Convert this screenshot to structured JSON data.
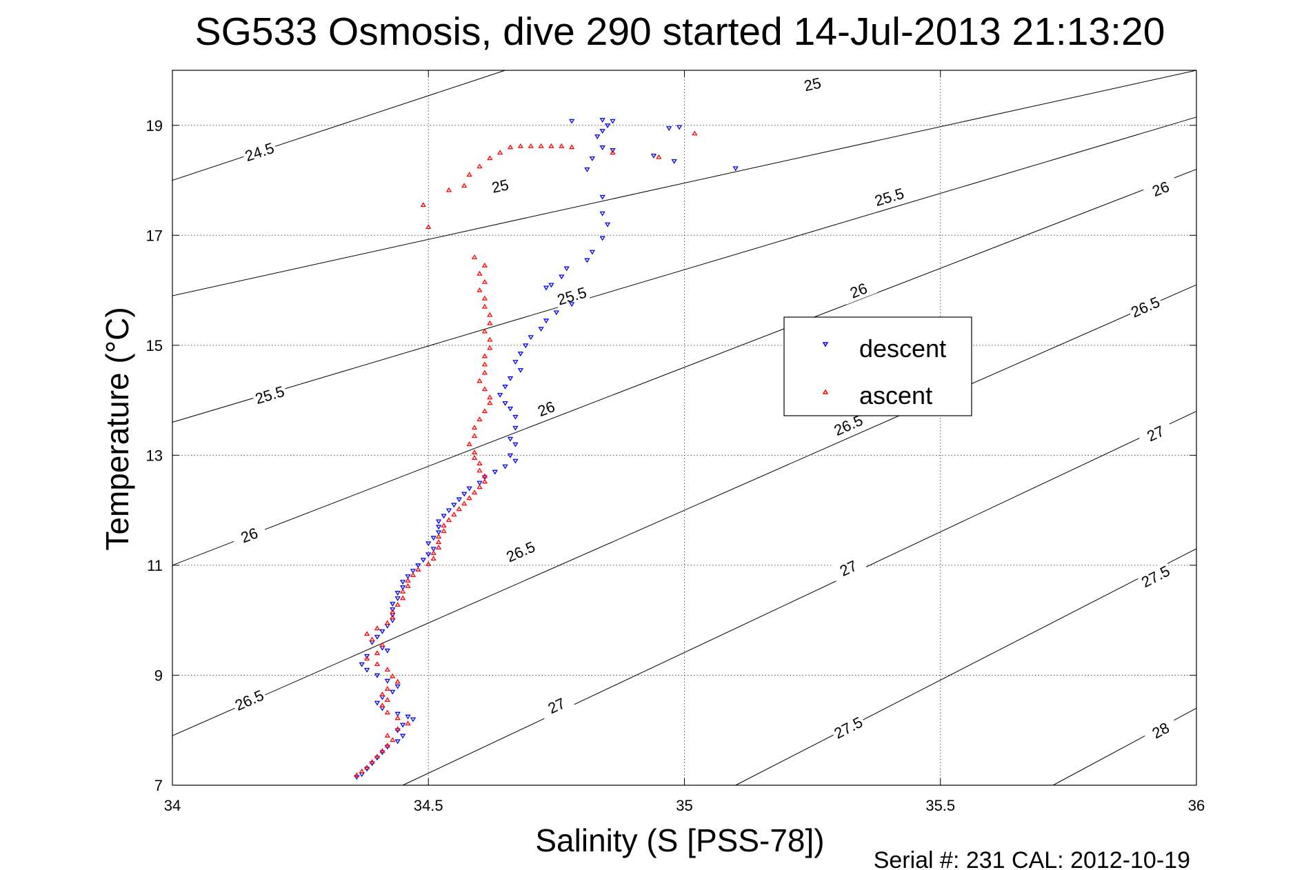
{
  "chart_data": {
    "type": "scatter",
    "title": "SG533 Osmosis, dive 290 started 14-Jul-2013 21:13:20",
    "xlabel": "Salinity (S [PSS-78])",
    "ylabel": "Temperature (°C)",
    "xlim": [
      34,
      36
    ],
    "ylim": [
      7,
      20
    ],
    "x_ticks": [
      34,
      34.5,
      35,
      35.5,
      36
    ],
    "x_tick_labels": [
      "34",
      "34.5",
      "35",
      "35.5",
      "36"
    ],
    "y_ticks": [
      7,
      9,
      11,
      13,
      15,
      17,
      19
    ],
    "y_tick_labels": [
      "7",
      "9",
      "11",
      "13",
      "15",
      "17",
      "19"
    ],
    "grid": true,
    "legend": {
      "position": "center-right"
    },
    "footer": "Serial #: 231  CAL: 2012-10-19",
    "density_contours": [
      {
        "level": "24.5",
        "line": [
          [
            34,
            18.0
          ],
          [
            34.65,
            20.0
          ]
        ],
        "labels": [
          {
            "s": 34.17,
            "t": 18.52
          }
        ]
      },
      {
        "level": "25",
        "line": [
          [
            34,
            15.9
          ],
          [
            36,
            20.0
          ]
        ],
        "labels": [
          {
            "s": 34.64,
            "t": 17.9
          },
          {
            "s": 35.25,
            "t": 19.75
          }
        ]
      },
      {
        "level": "25.5",
        "line": [
          [
            34,
            13.6
          ],
          [
            36,
            19.15
          ]
        ],
        "labels": [
          {
            "s": 34.19,
            "t": 14.1
          },
          {
            "s": 34.78,
            "t": 15.9
          },
          {
            "s": 35.4,
            "t": 17.7
          }
        ]
      },
      {
        "level": "26",
        "line": [
          [
            34,
            11.0
          ],
          [
            36,
            18.2
          ]
        ],
        "labels": [
          {
            "s": 34.15,
            "t": 11.55
          },
          {
            "s": 34.73,
            "t": 13.85
          },
          {
            "s": 35.34,
            "t": 16.0
          },
          {
            "s": 35.93,
            "t": 17.85
          }
        ]
      },
      {
        "level": "26.5",
        "line": [
          [
            34,
            7.9
          ],
          [
            36,
            16.1
          ]
        ],
        "labels": [
          {
            "s": 34.15,
            "t": 8.55
          },
          {
            "s": 34.68,
            "t": 11.25
          },
          {
            "s": 35.32,
            "t": 13.55
          },
          {
            "s": 35.9,
            "t": 15.7
          }
        ]
      },
      {
        "level": "27",
        "line": [
          [
            34.45,
            7.0
          ],
          [
            36,
            13.8
          ]
        ],
        "labels": [
          {
            "s": 34.75,
            "t": 8.45
          },
          {
            "s": 35.32,
            "t": 10.95
          },
          {
            "s": 35.92,
            "t": 13.4
          }
        ]
      },
      {
        "level": "27.5",
        "line": [
          [
            35.1,
            7.0
          ],
          [
            36,
            11.3
          ]
        ],
        "labels": [
          {
            "s": 35.32,
            "t": 8.05
          },
          {
            "s": 35.92,
            "t": 10.8
          }
        ]
      },
      {
        "level": "28",
        "line": [
          [
            35.72,
            7.0
          ],
          [
            36,
            8.4
          ]
        ],
        "labels": [
          {
            "s": 35.93,
            "t": 8.0
          }
        ]
      }
    ],
    "series": [
      {
        "name": "descent",
        "marker": "triangle-down",
        "color": "#0000ff",
        "points": [
          [
            34.78,
            19.08
          ],
          [
            34.84,
            19.1
          ],
          [
            34.86,
            19.08
          ],
          [
            34.85,
            19.0
          ],
          [
            34.84,
            18.9
          ],
          [
            34.97,
            18.95
          ],
          [
            34.99,
            18.97
          ],
          [
            34.83,
            18.8
          ],
          [
            34.84,
            18.6
          ],
          [
            34.86,
            18.55
          ],
          [
            34.94,
            18.45
          ],
          [
            34.82,
            18.4
          ],
          [
            34.81,
            18.2
          ],
          [
            34.98,
            18.35
          ],
          [
            35.1,
            18.22
          ],
          [
            34.84,
            17.7
          ],
          [
            34.84,
            17.4
          ],
          [
            34.85,
            17.2
          ],
          [
            34.84,
            16.95
          ],
          [
            34.82,
            16.7
          ],
          [
            34.81,
            16.55
          ],
          [
            34.77,
            16.4
          ],
          [
            34.76,
            16.25
          ],
          [
            34.74,
            16.1
          ],
          [
            34.73,
            16.05
          ],
          [
            34.78,
            15.75
          ],
          [
            34.75,
            15.6
          ],
          [
            34.73,
            15.45
          ],
          [
            34.72,
            15.3
          ],
          [
            34.7,
            15.15
          ],
          [
            34.69,
            15.0
          ],
          [
            34.68,
            14.85
          ],
          [
            34.67,
            14.7
          ],
          [
            34.68,
            14.55
          ],
          [
            34.66,
            14.4
          ],
          [
            34.65,
            14.25
          ],
          [
            34.64,
            14.1
          ],
          [
            34.65,
            13.95
          ],
          [
            34.66,
            13.85
          ],
          [
            34.67,
            13.7
          ],
          [
            34.67,
            13.5
          ],
          [
            34.66,
            13.3
          ],
          [
            34.67,
            13.2
          ],
          [
            34.66,
            13.0
          ],
          [
            34.67,
            12.9
          ],
          [
            34.65,
            12.8
          ],
          [
            34.63,
            12.7
          ],
          [
            34.61,
            12.6
          ],
          [
            34.6,
            12.5
          ],
          [
            34.58,
            12.4
          ],
          [
            34.57,
            12.3
          ],
          [
            34.56,
            12.2
          ],
          [
            34.55,
            12.1
          ],
          [
            34.54,
            12.0
          ],
          [
            34.53,
            11.9
          ],
          [
            34.52,
            11.8
          ],
          [
            34.52,
            11.7
          ],
          [
            34.52,
            11.6
          ],
          [
            34.51,
            11.5
          ],
          [
            34.5,
            11.4
          ],
          [
            34.51,
            11.3
          ],
          [
            34.5,
            11.2
          ],
          [
            34.49,
            11.1
          ],
          [
            34.48,
            11.0
          ],
          [
            34.47,
            10.9
          ],
          [
            34.46,
            10.8
          ],
          [
            34.45,
            10.7
          ],
          [
            34.45,
            10.6
          ],
          [
            34.44,
            10.5
          ],
          [
            34.44,
            10.4
          ],
          [
            34.43,
            10.3
          ],
          [
            34.43,
            10.2
          ],
          [
            34.43,
            10.1
          ],
          [
            34.43,
            10.0
          ],
          [
            34.42,
            9.9
          ],
          [
            34.41,
            9.8
          ],
          [
            34.4,
            9.7
          ],
          [
            34.39,
            9.6
          ],
          [
            34.41,
            9.5
          ],
          [
            34.42,
            9.45
          ],
          [
            34.38,
            9.35
          ],
          [
            34.37,
            9.2
          ],
          [
            34.38,
            9.1
          ],
          [
            34.4,
            9.0
          ],
          [
            34.42,
            8.9
          ],
          [
            34.44,
            8.8
          ],
          [
            34.43,
            8.7
          ],
          [
            34.41,
            8.6
          ],
          [
            34.4,
            8.5
          ],
          [
            34.41,
            8.4
          ],
          [
            34.44,
            8.3
          ],
          [
            34.46,
            8.25
          ],
          [
            34.47,
            8.2
          ],
          [
            34.45,
            8.1
          ],
          [
            34.44,
            8.0
          ],
          [
            34.45,
            7.9
          ],
          [
            34.44,
            7.8
          ],
          [
            34.42,
            7.7
          ],
          [
            34.41,
            7.6
          ],
          [
            34.4,
            7.5
          ],
          [
            34.39,
            7.4
          ],
          [
            34.38,
            7.3
          ],
          [
            34.37,
            7.2
          ],
          [
            34.36,
            7.15
          ]
        ]
      },
      {
        "name": "ascent",
        "marker": "triangle-up",
        "color": "#ff0000",
        "points": [
          [
            34.36,
            7.18
          ],
          [
            34.37,
            7.25
          ],
          [
            34.38,
            7.32
          ],
          [
            34.39,
            7.42
          ],
          [
            34.4,
            7.52
          ],
          [
            34.41,
            7.62
          ],
          [
            34.42,
            7.72
          ],
          [
            34.43,
            7.82
          ],
          [
            34.42,
            7.9
          ],
          [
            34.44,
            8.02
          ],
          [
            34.46,
            8.12
          ],
          [
            34.44,
            8.22
          ],
          [
            34.42,
            8.32
          ],
          [
            34.41,
            8.45
          ],
          [
            34.42,
            8.55
          ],
          [
            34.41,
            8.65
          ],
          [
            34.42,
            8.75
          ],
          [
            34.44,
            8.88
          ],
          [
            34.43,
            8.98
          ],
          [
            34.42,
            9.1
          ],
          [
            34.4,
            9.2
          ],
          [
            34.38,
            9.3
          ],
          [
            34.4,
            9.4
          ],
          [
            34.41,
            9.55
          ],
          [
            34.39,
            9.65
          ],
          [
            34.38,
            9.75
          ],
          [
            34.4,
            9.85
          ],
          [
            34.42,
            9.95
          ],
          [
            34.43,
            10.05
          ],
          [
            34.43,
            10.15
          ],
          [
            34.44,
            10.28
          ],
          [
            34.45,
            10.4
          ],
          [
            34.45,
            10.52
          ],
          [
            34.46,
            10.62
          ],
          [
            34.46,
            10.72
          ],
          [
            34.47,
            10.82
          ],
          [
            34.48,
            10.92
          ],
          [
            34.5,
            11.02
          ],
          [
            34.51,
            11.12
          ],
          [
            34.51,
            11.22
          ],
          [
            34.52,
            11.32
          ],
          [
            34.52,
            11.42
          ],
          [
            34.52,
            11.52
          ],
          [
            34.53,
            11.62
          ],
          [
            34.53,
            11.72
          ],
          [
            34.54,
            11.82
          ],
          [
            34.55,
            11.92
          ],
          [
            34.56,
            12.02
          ],
          [
            34.57,
            12.12
          ],
          [
            34.58,
            12.22
          ],
          [
            34.59,
            12.32
          ],
          [
            34.6,
            12.42
          ],
          [
            34.61,
            12.52
          ],
          [
            34.61,
            12.62
          ],
          [
            34.6,
            12.72
          ],
          [
            34.6,
            12.85
          ],
          [
            34.59,
            12.95
          ],
          [
            34.59,
            13.05
          ],
          [
            34.58,
            13.2
          ],
          [
            34.59,
            13.35
          ],
          [
            34.59,
            13.5
          ],
          [
            34.6,
            13.65
          ],
          [
            34.61,
            13.8
          ],
          [
            34.62,
            13.95
          ],
          [
            34.62,
            14.05
          ],
          [
            34.61,
            14.2
          ],
          [
            34.6,
            14.35
          ],
          [
            34.61,
            14.5
          ],
          [
            34.61,
            14.65
          ],
          [
            34.61,
            14.8
          ],
          [
            34.62,
            14.95
          ],
          [
            34.62,
            15.1
          ],
          [
            34.61,
            15.25
          ],
          [
            34.62,
            15.4
          ],
          [
            34.62,
            15.55
          ],
          [
            34.61,
            15.7
          ],
          [
            34.61,
            15.85
          ],
          [
            34.6,
            16.0
          ],
          [
            34.61,
            16.15
          ],
          [
            34.6,
            16.3
          ],
          [
            34.61,
            16.45
          ],
          [
            34.59,
            16.6
          ],
          [
            34.49,
            17.55
          ],
          [
            34.5,
            17.15
          ],
          [
            34.54,
            17.82
          ],
          [
            34.57,
            17.9
          ],
          [
            34.58,
            18.1
          ],
          [
            34.6,
            18.25
          ],
          [
            34.62,
            18.4
          ],
          [
            34.64,
            18.5
          ],
          [
            34.66,
            18.6
          ],
          [
            34.68,
            18.62
          ],
          [
            34.7,
            18.62
          ],
          [
            34.72,
            18.62
          ],
          [
            34.74,
            18.62
          ],
          [
            34.76,
            18.62
          ],
          [
            34.78,
            18.6
          ],
          [
            34.86,
            18.5
          ],
          [
            34.95,
            18.42
          ],
          [
            35.02,
            18.85
          ]
        ]
      }
    ]
  }
}
